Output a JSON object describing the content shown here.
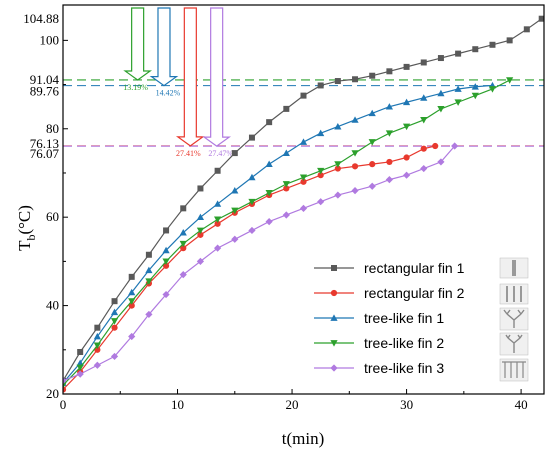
{
  "chart_data": {
    "type": "line",
    "xlabel": "t(min)",
    "ylabel": "T",
    "ylabel_sub": "b",
    "ylabel_unit": "(°C)",
    "xlim": [
      0,
      42
    ],
    "ylim": [
      20,
      108
    ],
    "x_ticks": [
      0,
      10,
      20,
      30,
      40
    ],
    "y_ticks": [
      20,
      40,
      60,
      80,
      100
    ],
    "grid": false,
    "legend_position": "bottom-right",
    "reference_lines": [
      {
        "value": 104.88,
        "label": "104.88",
        "color": "#000000"
      },
      {
        "value": 91.04,
        "label": "91.04",
        "color": "#2ca02c"
      },
      {
        "value": 89.76,
        "label": "89.76",
        "color": "#1f77b4"
      },
      {
        "value": 76.13,
        "label": "76.13",
        "color": "#e8392e"
      },
      {
        "value": 76.07,
        "label": "76.07",
        "color": "#b07ae0"
      }
    ],
    "reductions": [
      {
        "label": "13.19%",
        "color": "#2ca02c",
        "x": 3.2,
        "to": 91.04
      },
      {
        "label": "14.42%",
        "color": "#1f77b4",
        "x": 5.5,
        "to": 89.76
      },
      {
        "label": "27.41%",
        "color": "#e8392e",
        "x": 7.8,
        "to": 76.13
      },
      {
        "label": "27.47%",
        "color": "#b07ae0",
        "x": 10.1,
        "to": 76.07
      }
    ],
    "series": [
      {
        "name": "rectangular fin 1",
        "color": "#595959",
        "marker": "square",
        "x": [
          0,
          1.5,
          3,
          4.5,
          6,
          7.5,
          9,
          10.5,
          12,
          13.5,
          15,
          16.5,
          18,
          19.5,
          21,
          22.5,
          24,
          25.5,
          27,
          28.5,
          30,
          31.5,
          33,
          34.5,
          36,
          37.5,
          39,
          40.5,
          41.8
        ],
        "y": [
          23,
          29.5,
          35,
          41,
          46.5,
          51.5,
          57,
          62,
          66.5,
          70.5,
          74.5,
          78,
          81.5,
          84.5,
          87.5,
          89.8,
          90.8,
          91.2,
          92,
          93,
          94,
          95,
          96,
          97,
          98,
          99,
          100,
          102.5,
          104.9
        ]
      },
      {
        "name": "rectangular fin 2",
        "color": "#e8392e",
        "marker": "circle",
        "x": [
          0,
          1.5,
          3,
          4.5,
          6,
          7.5,
          9,
          10.5,
          12,
          13.5,
          15,
          16.5,
          18,
          19.5,
          21,
          22.5,
          24,
          25.5,
          27,
          28.5,
          30,
          31.5,
          32.5
        ],
        "y": [
          21,
          25,
          30,
          35,
          40,
          45,
          49,
          53,
          56,
          58.5,
          61,
          63,
          65,
          66.5,
          68,
          69.5,
          71,
          71.5,
          72,
          72.5,
          73.5,
          75.5,
          76.1
        ]
      },
      {
        "name": "tree-like fin 1",
        "color": "#1f77b4",
        "marker": "triangle-up",
        "x": [
          0,
          1.5,
          3,
          4.5,
          6,
          7.5,
          9,
          10.5,
          12,
          13.5,
          15,
          16.5,
          18,
          19.5,
          21,
          22.5,
          24,
          25.5,
          27,
          28.5,
          30,
          31.5,
          33,
          34.5,
          36,
          37.5
        ],
        "y": [
          22.5,
          27,
          33,
          38.5,
          43,
          48,
          52.5,
          56.5,
          60,
          63,
          66,
          69,
          72,
          74.5,
          77,
          79,
          80.5,
          82,
          83.5,
          85,
          86,
          87,
          88,
          89,
          89.5,
          89.8
        ]
      },
      {
        "name": "tree-like fin 2",
        "color": "#2ca02c",
        "marker": "triangle-down",
        "x": [
          0,
          1.5,
          3,
          4.5,
          6,
          7.5,
          9,
          10.5,
          12,
          13.5,
          15,
          16.5,
          18,
          19.5,
          21,
          22.5,
          24,
          25.5,
          27,
          28.5,
          30,
          31.5,
          33,
          34.5,
          36,
          37.5,
          39
        ],
        "y": [
          22,
          26,
          31,
          36.5,
          41,
          45.5,
          50,
          54,
          57,
          59.5,
          61.5,
          63.5,
          65.5,
          67.5,
          69,
          70.5,
          72,
          74.5,
          77,
          79,
          80.5,
          82,
          84.5,
          86,
          87.5,
          89,
          91
        ]
      },
      {
        "name": "tree-like fin 3",
        "color": "#b07ae0",
        "marker": "diamond",
        "x": [
          0,
          1.5,
          3,
          4.5,
          6,
          7.5,
          9,
          10.5,
          12,
          13.5,
          15,
          16.5,
          18,
          19.5,
          21,
          22.5,
          24,
          25.5,
          27,
          28.5,
          30,
          31.5,
          33,
          34.2
        ],
        "y": [
          23,
          24.5,
          26.5,
          28.5,
          33,
          38,
          42.5,
          47,
          50,
          53,
          55,
          57,
          59,
          60.5,
          62,
          63.5,
          65,
          66,
          67,
          68.5,
          69.5,
          71,
          72.5,
          76.1
        ]
      }
    ]
  }
}
